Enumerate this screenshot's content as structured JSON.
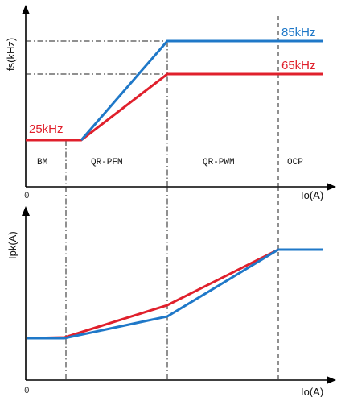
{
  "colors": {
    "blue": "#1f78c8",
    "red": "#e0202c",
    "axis": "#000000"
  },
  "chart_data": [
    {
      "type": "line",
      "ylabel": "fs(kHz)",
      "xlabel": "Io(A)",
      "origin_label": "0",
      "regions": [
        "BM",
        "QR-PFM",
        "QR-PWM",
        "OCP"
      ],
      "grid": false,
      "xlim": [
        0,
        1
      ],
      "ylim": [
        0,
        100
      ],
      "annotations": [
        "85kHz",
        "65kHz",
        "25kHz"
      ],
      "series": [
        {
          "color": "blue",
          "x": [
            0,
            0.18,
            0.47,
            1
          ],
          "y": [
            25,
            25,
            85,
            85
          ]
        },
        {
          "color": "red",
          "x": [
            0,
            0.18,
            0.47,
            1
          ],
          "y": [
            25,
            25,
            65,
            65
          ]
        }
      ]
    },
    {
      "type": "line",
      "ylabel": "Ipk(A)",
      "xlabel": "Io(A)",
      "origin_label": "0",
      "grid": false,
      "xlim": [
        0,
        1
      ],
      "ylim": [
        0,
        100
      ],
      "series": [
        {
          "color": "blue",
          "x": [
            0,
            0.12,
            0.47,
            0.83,
            1
          ],
          "y": [
            25,
            25,
            40,
            78,
            78
          ]
        },
        {
          "color": "red",
          "x": [
            0,
            0.12,
            0.47,
            0.83,
            1
          ],
          "y": [
            25,
            26,
            48,
            78,
            78
          ]
        }
      ]
    }
  ]
}
